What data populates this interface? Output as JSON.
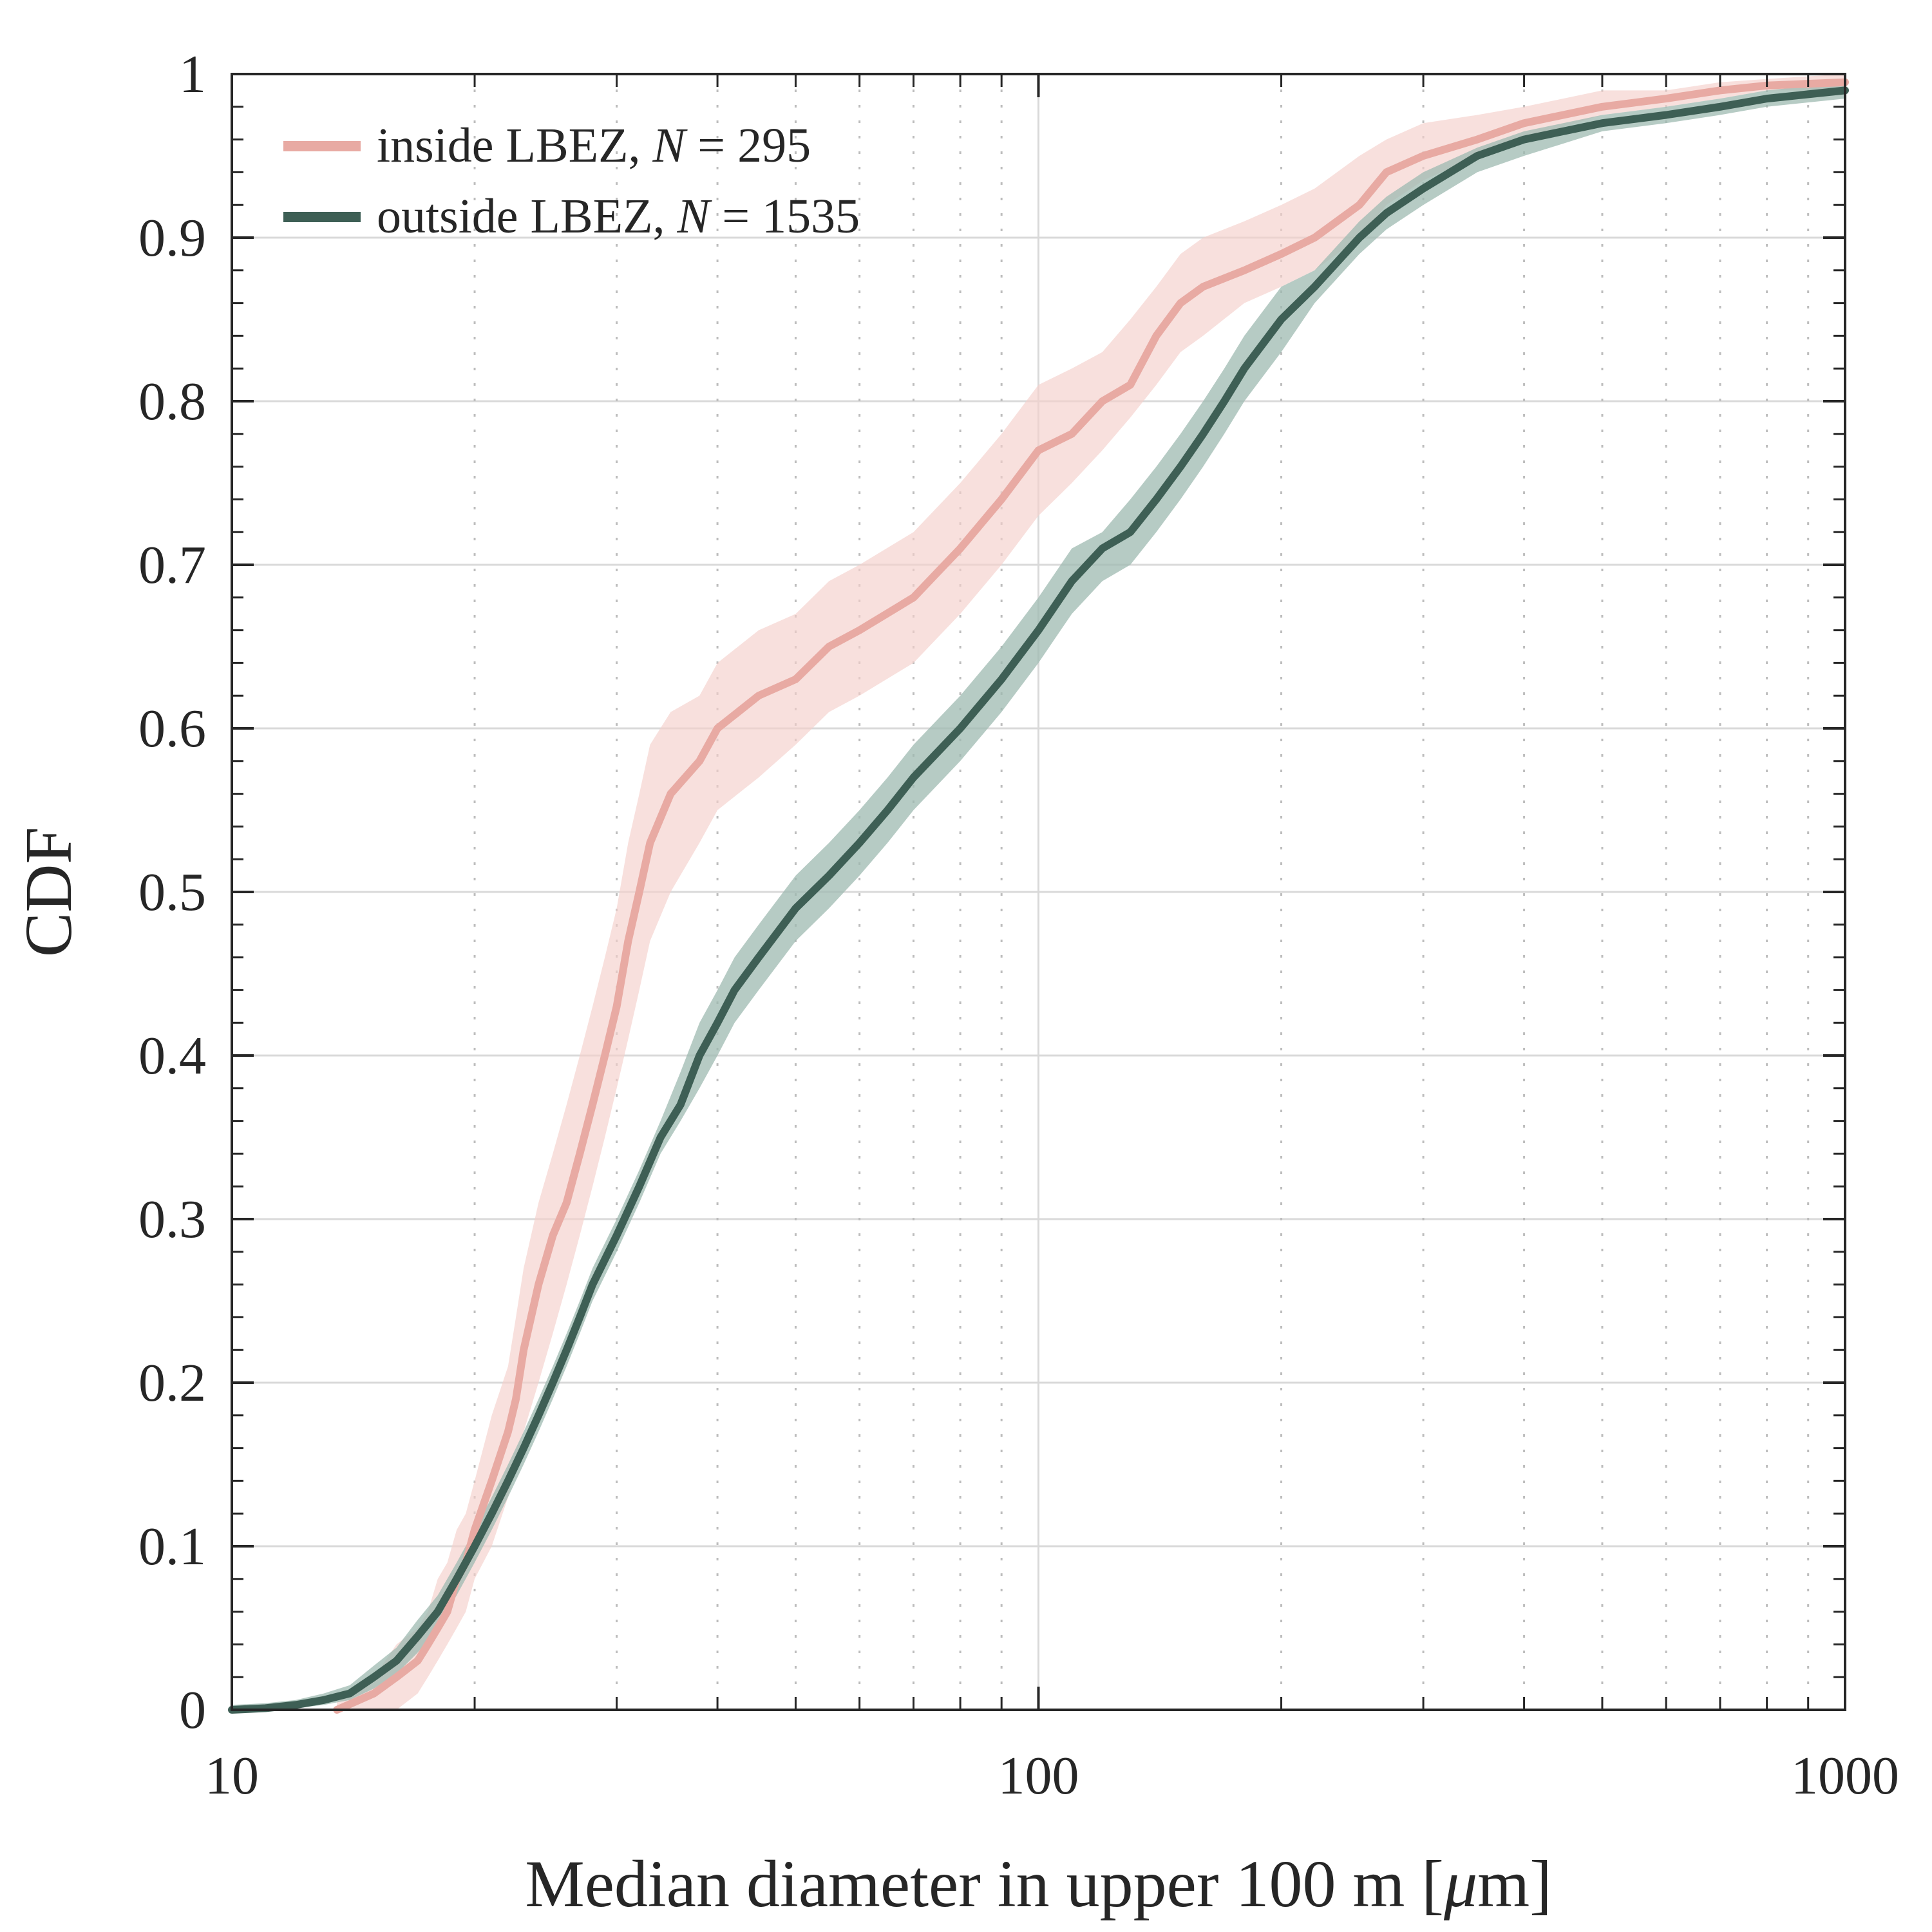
{
  "chart_data": {
    "type": "line",
    "title": "",
    "xlabel": "Median diameter in upper 100 m [μm]",
    "xlabel_parts": {
      "before": "Median diameter in upper 100 m [",
      "italic": "μ",
      "after": "m]"
    },
    "ylabel": "CDF",
    "xscale": "log",
    "xlim": [
      10,
      1000
    ],
    "ylim": [
      0,
      1
    ],
    "x_ticks": [
      {
        "value": 10,
        "label": "10"
      },
      {
        "value": 100,
        "label": "100"
      },
      {
        "value": 1000,
        "label": "1000"
      }
    ],
    "y_ticks": [
      {
        "value": 0,
        "label": "0"
      },
      {
        "value": 0.1,
        "label": "0.1"
      },
      {
        "value": 0.2,
        "label": "0.2"
      },
      {
        "value": 0.3,
        "label": "0.3"
      },
      {
        "value": 0.4,
        "label": "0.4"
      },
      {
        "value": 0.5,
        "label": "0.5"
      },
      {
        "value": 0.6,
        "label": "0.6"
      },
      {
        "value": 0.7,
        "label": "0.7"
      },
      {
        "value": 0.8,
        "label": "0.8"
      },
      {
        "value": 0.9,
        "label": "0.9"
      },
      {
        "value": 1,
        "label": "1"
      }
    ],
    "grid": true,
    "legend_position": "top-left",
    "series": [
      {
        "name": "inside LBEZ, N = 295",
        "legend_parts": {
          "before": "inside LBEZ, ",
          "italic": "N",
          "after": " = 295"
        },
        "color": "#e8aaa3",
        "band_color": "#f5cfcb",
        "x": [
          13.5,
          15,
          16,
          17,
          17.5,
          18,
          18.5,
          19,
          19.5,
          20,
          21,
          22,
          22.5,
          23,
          24,
          25,
          26,
          27,
          28,
          29,
          30,
          31,
          32,
          33,
          35,
          38,
          40,
          45,
          50,
          55,
          60,
          70,
          80,
          90,
          100,
          110,
          120,
          130,
          140,
          150,
          160,
          180,
          200,
          220,
          250,
          270,
          300,
          350,
          400,
          500,
          600,
          700,
          800,
          1000
        ],
        "y": [
          0.0,
          0.01,
          0.02,
          0.03,
          0.04,
          0.05,
          0.06,
          0.08,
          0.09,
          0.11,
          0.14,
          0.17,
          0.19,
          0.22,
          0.26,
          0.29,
          0.31,
          0.34,
          0.37,
          0.4,
          0.43,
          0.47,
          0.5,
          0.53,
          0.56,
          0.58,
          0.6,
          0.62,
          0.63,
          0.65,
          0.66,
          0.68,
          0.71,
          0.74,
          0.77,
          0.78,
          0.8,
          0.81,
          0.84,
          0.86,
          0.87,
          0.88,
          0.89,
          0.9,
          0.92,
          0.94,
          0.95,
          0.96,
          0.97,
          0.98,
          0.985,
          0.99,
          0.993,
          0.995
        ],
        "lower": [
          0.0,
          0.0,
          0.0,
          0.01,
          0.02,
          0.03,
          0.04,
          0.05,
          0.06,
          0.08,
          0.1,
          0.13,
          0.15,
          0.17,
          0.2,
          0.23,
          0.26,
          0.29,
          0.32,
          0.35,
          0.38,
          0.41,
          0.44,
          0.47,
          0.5,
          0.53,
          0.55,
          0.57,
          0.59,
          0.61,
          0.62,
          0.64,
          0.67,
          0.7,
          0.73,
          0.75,
          0.77,
          0.79,
          0.81,
          0.83,
          0.84,
          0.86,
          0.87,
          0.88,
          0.9,
          0.92,
          0.935,
          0.95,
          0.96,
          0.975,
          0.98,
          0.985,
          0.99,
          0.99
        ],
        "upper": [
          0.005,
          0.02,
          0.04,
          0.05,
          0.06,
          0.08,
          0.09,
          0.11,
          0.12,
          0.14,
          0.18,
          0.21,
          0.24,
          0.27,
          0.31,
          0.34,
          0.37,
          0.4,
          0.43,
          0.46,
          0.49,
          0.53,
          0.56,
          0.59,
          0.61,
          0.62,
          0.64,
          0.66,
          0.67,
          0.69,
          0.7,
          0.72,
          0.75,
          0.78,
          0.81,
          0.82,
          0.83,
          0.85,
          0.87,
          0.89,
          0.9,
          0.91,
          0.92,
          0.93,
          0.95,
          0.96,
          0.97,
          0.975,
          0.98,
          0.99,
          0.99,
          0.995,
          0.997,
          1.0
        ]
      },
      {
        "name": "outside LBEZ, N = 1535",
        "legend_parts": {
          "before": "outside LBEZ, ",
          "italic": "N",
          "after": " = 1535"
        },
        "color": "#3e5f55",
        "band_color": "#9dbab0",
        "x": [
          10,
          11,
          12,
          13,
          14,
          15,
          16,
          17,
          18,
          19,
          20,
          21,
          22,
          23,
          24,
          25,
          26,
          27,
          28,
          30,
          32,
          34,
          36,
          38,
          40,
          42,
          45,
          50,
          55,
          60,
          65,
          70,
          80,
          90,
          100,
          110,
          120,
          130,
          140,
          150,
          160,
          170,
          180,
          200,
          220,
          250,
          270,
          300,
          350,
          400,
          500,
          600,
          700,
          800,
          1000
        ],
        "y": [
          0.0,
          0.001,
          0.003,
          0.006,
          0.01,
          0.02,
          0.03,
          0.045,
          0.06,
          0.08,
          0.1,
          0.12,
          0.14,
          0.16,
          0.18,
          0.2,
          0.22,
          0.24,
          0.26,
          0.29,
          0.32,
          0.35,
          0.37,
          0.4,
          0.42,
          0.44,
          0.46,
          0.49,
          0.51,
          0.53,
          0.55,
          0.57,
          0.6,
          0.63,
          0.66,
          0.69,
          0.71,
          0.72,
          0.74,
          0.76,
          0.78,
          0.8,
          0.82,
          0.85,
          0.87,
          0.9,
          0.915,
          0.93,
          0.95,
          0.96,
          0.97,
          0.975,
          0.98,
          0.985,
          0.99
        ],
        "lower": [
          0.0,
          0.0,
          0.001,
          0.003,
          0.006,
          0.013,
          0.022,
          0.035,
          0.05,
          0.07,
          0.09,
          0.11,
          0.13,
          0.15,
          0.17,
          0.19,
          0.21,
          0.23,
          0.25,
          0.28,
          0.31,
          0.34,
          0.36,
          0.38,
          0.4,
          0.42,
          0.44,
          0.47,
          0.49,
          0.51,
          0.53,
          0.55,
          0.58,
          0.61,
          0.64,
          0.67,
          0.69,
          0.7,
          0.72,
          0.74,
          0.76,
          0.78,
          0.8,
          0.83,
          0.86,
          0.89,
          0.905,
          0.92,
          0.94,
          0.95,
          0.965,
          0.97,
          0.975,
          0.98,
          0.985
        ],
        "upper": [
          0.003,
          0.004,
          0.006,
          0.01,
          0.015,
          0.027,
          0.038,
          0.055,
          0.07,
          0.09,
          0.11,
          0.13,
          0.15,
          0.17,
          0.19,
          0.21,
          0.23,
          0.25,
          0.27,
          0.3,
          0.33,
          0.36,
          0.39,
          0.42,
          0.44,
          0.46,
          0.48,
          0.51,
          0.53,
          0.55,
          0.57,
          0.59,
          0.62,
          0.65,
          0.68,
          0.71,
          0.72,
          0.74,
          0.76,
          0.78,
          0.8,
          0.82,
          0.84,
          0.87,
          0.88,
          0.91,
          0.925,
          0.94,
          0.955,
          0.965,
          0.975,
          0.98,
          0.985,
          0.99,
          0.995
        ]
      }
    ]
  }
}
